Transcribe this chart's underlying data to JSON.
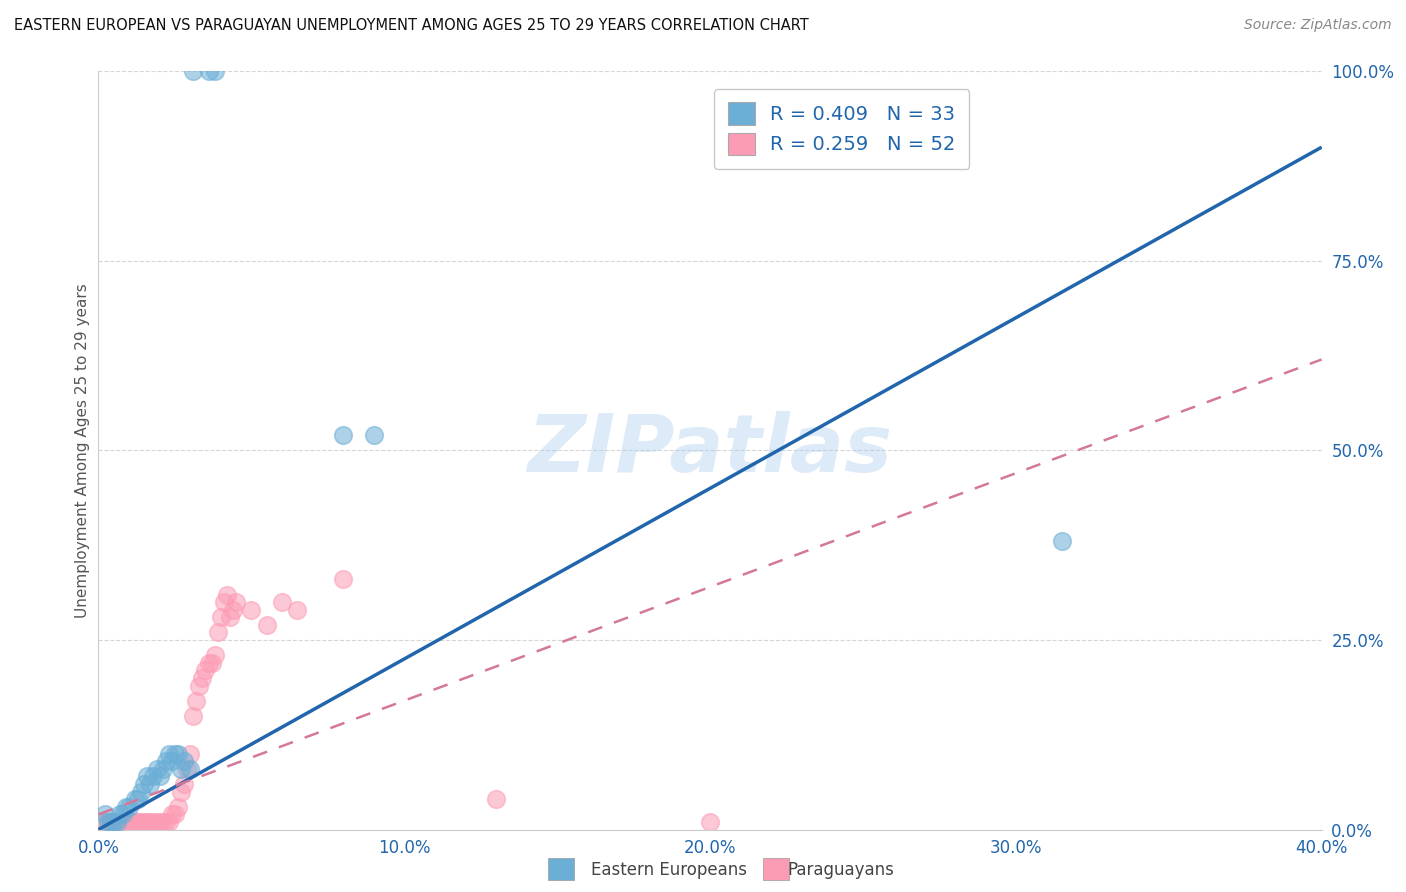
{
  "title": "EASTERN EUROPEAN VS PARAGUAYAN UNEMPLOYMENT AMONG AGES 25 TO 29 YEARS CORRELATION CHART",
  "source": "Source: ZipAtlas.com",
  "xlabel_ticks": [
    "0.0%",
    "10.0%",
    "20.0%",
    "30.0%",
    "40.0%"
  ],
  "ylabel_ticks": [
    "0.0%",
    "25.0%",
    "50.0%",
    "75.0%",
    "100.0%"
  ],
  "xlim": [
    0.0,
    0.4
  ],
  "ylim": [
    0.0,
    1.0
  ],
  "ylabel_label": "Unemployment Among Ages 25 to 29 years",
  "blue_R": 0.409,
  "blue_N": 33,
  "pink_R": 0.259,
  "pink_N": 52,
  "blue_color": "#6baed6",
  "pink_color": "#fc9cb4",
  "blue_line_color": "#2166ac",
  "pink_line_color": "#d4789a",
  "watermark_text": "ZIPatlas",
  "legend_label_blue": "Eastern Europeans",
  "legend_label_pink": "Paraguayans",
  "blue_line_x": [
    0.0,
    0.4
  ],
  "blue_line_y": [
    0.0,
    0.9
  ],
  "pink_line_x": [
    0.0,
    0.4
  ],
  "pink_line_y": [
    0.02,
    0.62
  ],
  "blue_scatter_x": [
    0.031,
    0.036,
    0.038,
    0.002,
    0.003,
    0.004,
    0.005,
    0.006,
    0.007,
    0.008,
    0.009,
    0.01,
    0.012,
    0.013,
    0.014,
    0.015,
    0.016,
    0.017,
    0.018,
    0.019,
    0.02,
    0.021,
    0.022,
    0.023,
    0.024,
    0.025,
    0.026,
    0.027,
    0.028,
    0.03,
    0.08,
    0.09,
    0.315
  ],
  "blue_scatter_y": [
    1.0,
    1.0,
    1.0,
    0.02,
    0.01,
    0.01,
    0.01,
    0.01,
    0.02,
    0.02,
    0.03,
    0.03,
    0.04,
    0.04,
    0.05,
    0.06,
    0.07,
    0.06,
    0.07,
    0.08,
    0.07,
    0.08,
    0.09,
    0.1,
    0.09,
    0.1,
    0.1,
    0.08,
    0.09,
    0.08,
    0.52,
    0.52,
    0.38
  ],
  "pink_scatter_x": [
    0.001,
    0.002,
    0.003,
    0.004,
    0.005,
    0.006,
    0.007,
    0.008,
    0.009,
    0.01,
    0.011,
    0.012,
    0.013,
    0.014,
    0.015,
    0.016,
    0.017,
    0.018,
    0.019,
    0.02,
    0.021,
    0.022,
    0.023,
    0.024,
    0.025,
    0.026,
    0.027,
    0.028,
    0.029,
    0.03,
    0.031,
    0.032,
    0.033,
    0.034,
    0.035,
    0.036,
    0.037,
    0.038,
    0.039,
    0.04,
    0.041,
    0.042,
    0.043,
    0.044,
    0.045,
    0.05,
    0.055,
    0.06,
    0.065,
    0.08,
    0.13,
    0.2
  ],
  "pink_scatter_y": [
    0.01,
    0.01,
    0.01,
    0.01,
    0.01,
    0.01,
    0.01,
    0.01,
    0.01,
    0.01,
    0.01,
    0.01,
    0.01,
    0.01,
    0.01,
    0.01,
    0.01,
    0.01,
    0.01,
    0.01,
    0.01,
    0.01,
    0.01,
    0.02,
    0.02,
    0.03,
    0.05,
    0.06,
    0.08,
    0.1,
    0.15,
    0.17,
    0.19,
    0.2,
    0.21,
    0.22,
    0.22,
    0.23,
    0.26,
    0.28,
    0.3,
    0.31,
    0.28,
    0.29,
    0.3,
    0.29,
    0.27,
    0.3,
    0.29,
    0.33,
    0.04,
    0.01
  ]
}
